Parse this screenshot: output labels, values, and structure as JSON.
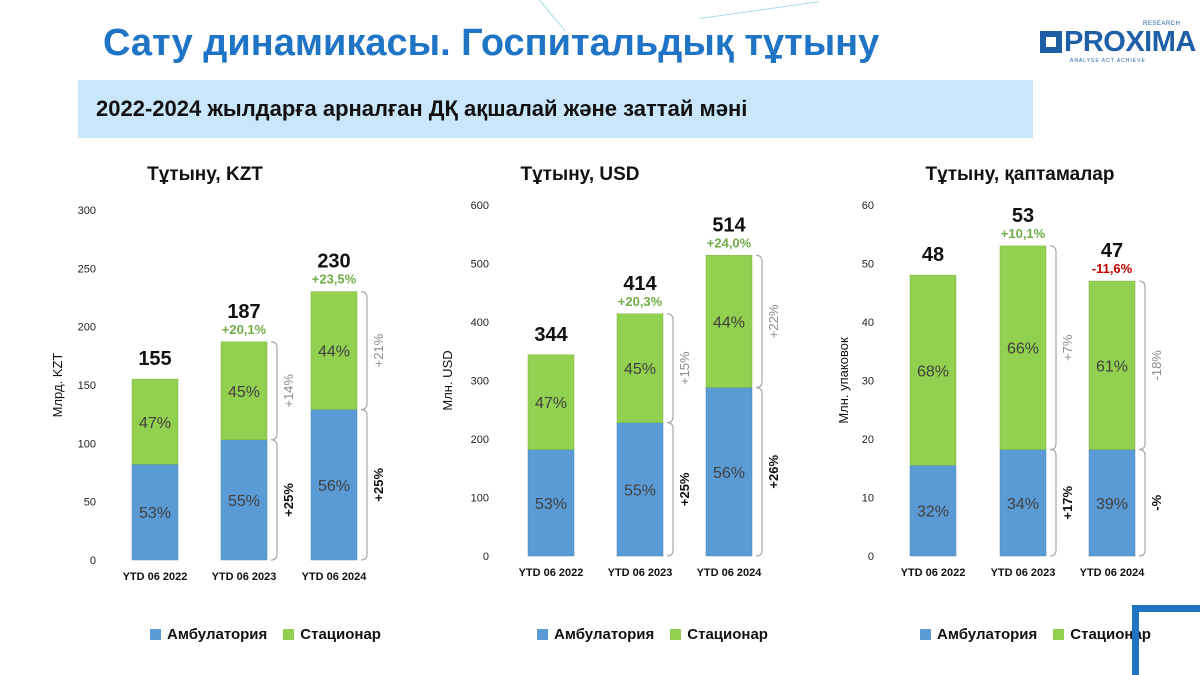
{
  "page": {
    "title": "Сату динамикасы. Госпитальдық тұтыну",
    "banner": "2022-2024 жылдарға арналған ДҚ ақшалай және заттай мәні",
    "logo": {
      "name": "PROXIMA",
      "sub": "RESEARCH",
      "tagline": "ANALYSE ACT ACHIEVE"
    },
    "colors": {
      "title": "#1f74c6",
      "banner_bg": "#c9e6fb",
      "ambulatory": "#5b9bd5",
      "inpatient": "#92d050",
      "growth_pos": "#70ad47",
      "growth_neg": "#c00000",
      "brace": "#a6a6a6"
    }
  },
  "chart_data": [
    {
      "type": "bar",
      "stacked": true,
      "title": "Тұтыну, KZT",
      "ylabel": "Млрд. KZT",
      "ylim": [
        0,
        300
      ],
      "yticks": [
        0,
        50,
        100,
        150,
        200,
        250,
        300
      ],
      "categories": [
        "YTD 06 2022",
        "YTD 06 2023",
        "YTD 06 2024"
      ],
      "series": [
        {
          "name": "Амбулатория",
          "values": [
            82,
            103,
            129
          ],
          "labels": [
            "53%",
            "55%",
            "56%"
          ],
          "color": "#5b9bd5"
        },
        {
          "name": "Стационар",
          "values": [
            73,
            84,
            101
          ],
          "labels": [
            "47%",
            "45%",
            "44%"
          ],
          "color": "#92d050"
        }
      ],
      "totals": [
        "155",
        "187",
        "230"
      ],
      "growth": [
        "",
        "+20,1%",
        "+23,5%"
      ],
      "growth_sign": [
        "",
        "pos",
        "pos"
      ],
      "brace_labels": {
        "ambulatory": [
          "+25%",
          "+25%"
        ],
        "inpatient": [
          "+14%",
          "+21%"
        ]
      },
      "legend": [
        "Амбулатория",
        "Стационар"
      ]
    },
    {
      "type": "bar",
      "stacked": true,
      "title": "Тұтыну, USD",
      "ylabel": "Млн. USD",
      "ylim": [
        0,
        600
      ],
      "yticks": [
        0,
        100,
        200,
        300,
        400,
        500,
        600
      ],
      "categories": [
        "YTD 06 2022",
        "YTD 06 2023",
        "YTD 06 2024"
      ],
      "series": [
        {
          "name": "Амбулатория",
          "values": [
            182,
            228,
            288
          ],
          "labels": [
            "53%",
            "55%",
            "56%"
          ],
          "color": "#5b9bd5"
        },
        {
          "name": "Стационар",
          "values": [
            162,
            186,
            226
          ],
          "labels": [
            "47%",
            "45%",
            "44%"
          ],
          "color": "#92d050"
        }
      ],
      "totals": [
        "344",
        "414",
        "514"
      ],
      "growth": [
        "",
        "+20,3%",
        "+24,0%"
      ],
      "growth_sign": [
        "",
        "pos",
        "pos"
      ],
      "brace_labels": {
        "ambulatory": [
          "+25%",
          "+26%"
        ],
        "inpatient": [
          "+15%",
          "+22%"
        ]
      },
      "legend": [
        "Амбулатория",
        "Стационар"
      ]
    },
    {
      "type": "bar",
      "stacked": true,
      "title": "Тұтыну, қаптамалар",
      "ylabel": "Млн. упаковок",
      "ylim": [
        0,
        60
      ],
      "yticks": [
        0,
        10,
        20,
        30,
        40,
        50,
        60
      ],
      "categories": [
        "YTD 06 2022",
        "YTD 06 2023",
        "YTD 06 2024"
      ],
      "series": [
        {
          "name": "Амбулатория",
          "values": [
            15.5,
            18.2,
            18.2
          ],
          "labels": [
            "32%",
            "34%",
            "39%"
          ],
          "color": "#5b9bd5"
        },
        {
          "name": "Стационар",
          "values": [
            32.5,
            34.8,
            28.8
          ],
          "labels": [
            "68%",
            "66%",
            "61%"
          ],
          "color": "#92d050"
        }
      ],
      "totals": [
        "48",
        "53",
        "47"
      ],
      "growth": [
        "",
        "+10,1%",
        "-11,6%"
      ],
      "growth_sign": [
        "",
        "pos",
        "neg"
      ],
      "brace_labels": {
        "ambulatory": [
          "+17%",
          "-%"
        ],
        "inpatient": [
          "+7%",
          "-18%"
        ]
      },
      "legend": [
        "Амбулатория",
        "Стационар"
      ]
    }
  ]
}
